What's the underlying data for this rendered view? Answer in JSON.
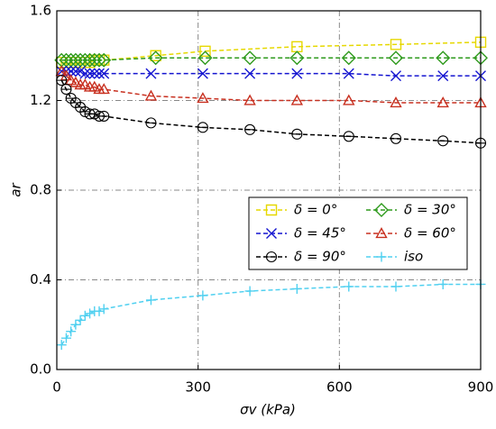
{
  "chart_data": {
    "type": "line",
    "xlabel": "σv (kPa)",
    "ylabel": "ar",
    "xlim": [
      0,
      900
    ],
    "xticks": [
      0,
      300,
      600,
      900
    ],
    "ylim": [
      0,
      1.6
    ],
    "yticks": [
      {
        "value": 0,
        "label": "0.0"
      },
      0.4,
      0.8,
      1.2,
      1.6
    ],
    "grid": true,
    "legend": "right",
    "series": [
      {
        "name": "δ = 0°",
        "color": "#e6d800",
        "marker": "square",
        "x": [
          10,
          20,
          30,
          40,
          50,
          60,
          70,
          80,
          90,
          100,
          210,
          315,
          510,
          720,
          900
        ],
        "values": [
          1.37,
          1.37,
          1.37,
          1.37,
          1.37,
          1.37,
          1.37,
          1.38,
          1.38,
          1.38,
          1.4,
          1.42,
          1.44,
          1.45,
          1.46
        ]
      },
      {
        "name": "δ = 30°",
        "color": "#2e9a1c",
        "marker": "diamond",
        "x": [
          10,
          20,
          30,
          40,
          50,
          60,
          70,
          80,
          90,
          100,
          210,
          315,
          410,
          510,
          620,
          720,
          820,
          900
        ],
        "values": [
          1.38,
          1.38,
          1.38,
          1.38,
          1.38,
          1.38,
          1.38,
          1.38,
          1.38,
          1.38,
          1.39,
          1.39,
          1.39,
          1.39,
          1.39,
          1.39,
          1.39,
          1.39
        ]
      },
      {
        "name": "δ = 45°",
        "color": "#1414d0",
        "marker": "x",
        "x": [
          10,
          20,
          30,
          40,
          50,
          60,
          70,
          80,
          90,
          100,
          200,
          310,
          410,
          510,
          620,
          720,
          820,
          900
        ],
        "values": [
          1.33,
          1.33,
          1.33,
          1.33,
          1.33,
          1.32,
          1.32,
          1.32,
          1.32,
          1.32,
          1.32,
          1.32,
          1.32,
          1.32,
          1.32,
          1.31,
          1.31,
          1.31
        ]
      },
      {
        "name": "δ = 60°",
        "color": "#c83020",
        "marker": "triangle",
        "x": [
          10,
          20,
          30,
          40,
          50,
          60,
          70,
          80,
          90,
          100,
          200,
          310,
          410,
          510,
          620,
          720,
          820,
          900
        ],
        "values": [
          1.33,
          1.31,
          1.29,
          1.28,
          1.27,
          1.27,
          1.26,
          1.26,
          1.25,
          1.25,
          1.22,
          1.21,
          1.2,
          1.2,
          1.2,
          1.19,
          1.19,
          1.19
        ]
      },
      {
        "name": "δ = 90°",
        "color": "#000000",
        "marker": "circle",
        "x": [
          10,
          20,
          30,
          40,
          50,
          60,
          70,
          80,
          90,
          100,
          200,
          310,
          410,
          510,
          620,
          720,
          820,
          900
        ],
        "values": [
          1.29,
          1.25,
          1.21,
          1.19,
          1.17,
          1.15,
          1.14,
          1.14,
          1.13,
          1.13,
          1.1,
          1.08,
          1.07,
          1.05,
          1.04,
          1.03,
          1.02,
          1.01
        ]
      },
      {
        "name": "iso",
        "color": "#50d0f0",
        "marker": "plus",
        "x": [
          10,
          20,
          30,
          40,
          50,
          60,
          70,
          80,
          90,
          100,
          200,
          310,
          410,
          510,
          620,
          720,
          820,
          900
        ],
        "values": [
          0.11,
          0.14,
          0.17,
          0.2,
          0.22,
          0.24,
          0.25,
          0.26,
          0.26,
          0.27,
          0.31,
          0.33,
          0.35,
          0.36,
          0.37,
          0.37,
          0.38,
          0.38
        ]
      }
    ]
  }
}
